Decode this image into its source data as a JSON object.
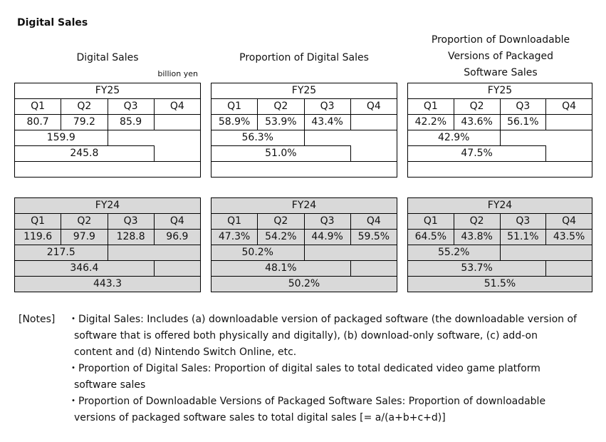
{
  "page_title": "Digital Sales",
  "unit_label": "billion yen",
  "blocks": [
    {
      "title_lines": [
        "Digital Sales"
      ],
      "fy25": {
        "label": "FY25",
        "quarters": [
          "Q1",
          "Q2",
          "Q3",
          "Q4"
        ],
        "q": [
          "80.7",
          "79.2",
          "85.9",
          ""
        ],
        "h1": "159.9",
        "q1_3": "245.8",
        "full": ""
      },
      "fy24": {
        "label": "FY24",
        "quarters": [
          "Q1",
          "Q2",
          "Q3",
          "Q4"
        ],
        "q": [
          "119.6",
          "97.9",
          "128.8",
          "96.9"
        ],
        "h1": "217.5",
        "q1_3": "346.4",
        "full": "443.3"
      }
    },
    {
      "title_lines": [
        "Proportion of Digital Sales"
      ],
      "fy25": {
        "label": "FY25",
        "quarters": [
          "Q1",
          "Q2",
          "Q3",
          "Q4"
        ],
        "q": [
          "58.9%",
          "53.9%",
          "43.4%",
          ""
        ],
        "h1": "56.3%",
        "q1_3": "51.0%",
        "full": ""
      },
      "fy24": {
        "label": "FY24",
        "quarters": [
          "Q1",
          "Q2",
          "Q3",
          "Q4"
        ],
        "q": [
          "47.3%",
          "54.2%",
          "44.9%",
          "59.5%"
        ],
        "h1": "50.2%",
        "q1_3": "48.1%",
        "full": "50.2%"
      }
    },
    {
      "title_lines": [
        "Proportion of Downloadable",
        "Versions of Packaged",
        "Software Sales"
      ],
      "fy25": {
        "label": "FY25",
        "quarters": [
          "Q1",
          "Q2",
          "Q3",
          "Q4"
        ],
        "q": [
          "42.2%",
          "43.6%",
          "56.1%",
          ""
        ],
        "h1": "42.9%",
        "q1_3": "47.5%",
        "full": ""
      },
      "fy24": {
        "label": "FY24",
        "quarters": [
          "Q1",
          "Q2",
          "Q3",
          "Q4"
        ],
        "q": [
          "64.5%",
          "43.8%",
          "51.1%",
          "43.5%"
        ],
        "h1": "55.2%",
        "q1_3": "53.7%",
        "full": "51.5%"
      }
    }
  ],
  "notes": {
    "lead": "[Notes]",
    "items": [
      {
        "lines": [
          "・Digital Sales: Includes (a) downloadable version of packaged software (the downloadable version of",
          "software that is offered both physically and digitally), (b) download-only software, (c) add-on",
          "content and (d) Nintendo Switch Online, etc."
        ]
      },
      {
        "lines": [
          "・Proportion of Digital Sales: Proportion of digital sales to total dedicated video game platform",
          "software sales"
        ]
      },
      {
        "lines": [
          "・Proportion of Downloadable Versions of Packaged Software Sales: Proportion of downloadable",
          "versions of packaged software sales to total digital sales [= a/(a+b+c+d)]"
        ]
      }
    ]
  }
}
